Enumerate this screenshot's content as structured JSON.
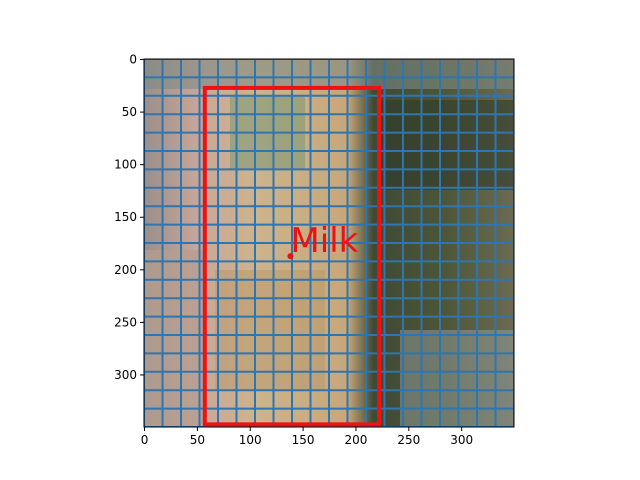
{
  "chart_data": {
    "type": "image",
    "xlim": [
      -0.5,
      349.5
    ],
    "ylim": [
      349.5,
      -0.5
    ],
    "xticks": [
      0,
      50,
      100,
      150,
      200,
      250,
      300
    ],
    "yticks": [
      0,
      50,
      100,
      150,
      200,
      250,
      300
    ],
    "grid": true,
    "grid_spacing": 17.5,
    "grid_color": "#2f75b0",
    "box": {
      "x": [
        57,
        222
      ],
      "y": [
        27,
        347
      ],
      "color": "#ee1111"
    },
    "point": {
      "x": 138,
      "y": 187
    },
    "label": "Milk"
  }
}
